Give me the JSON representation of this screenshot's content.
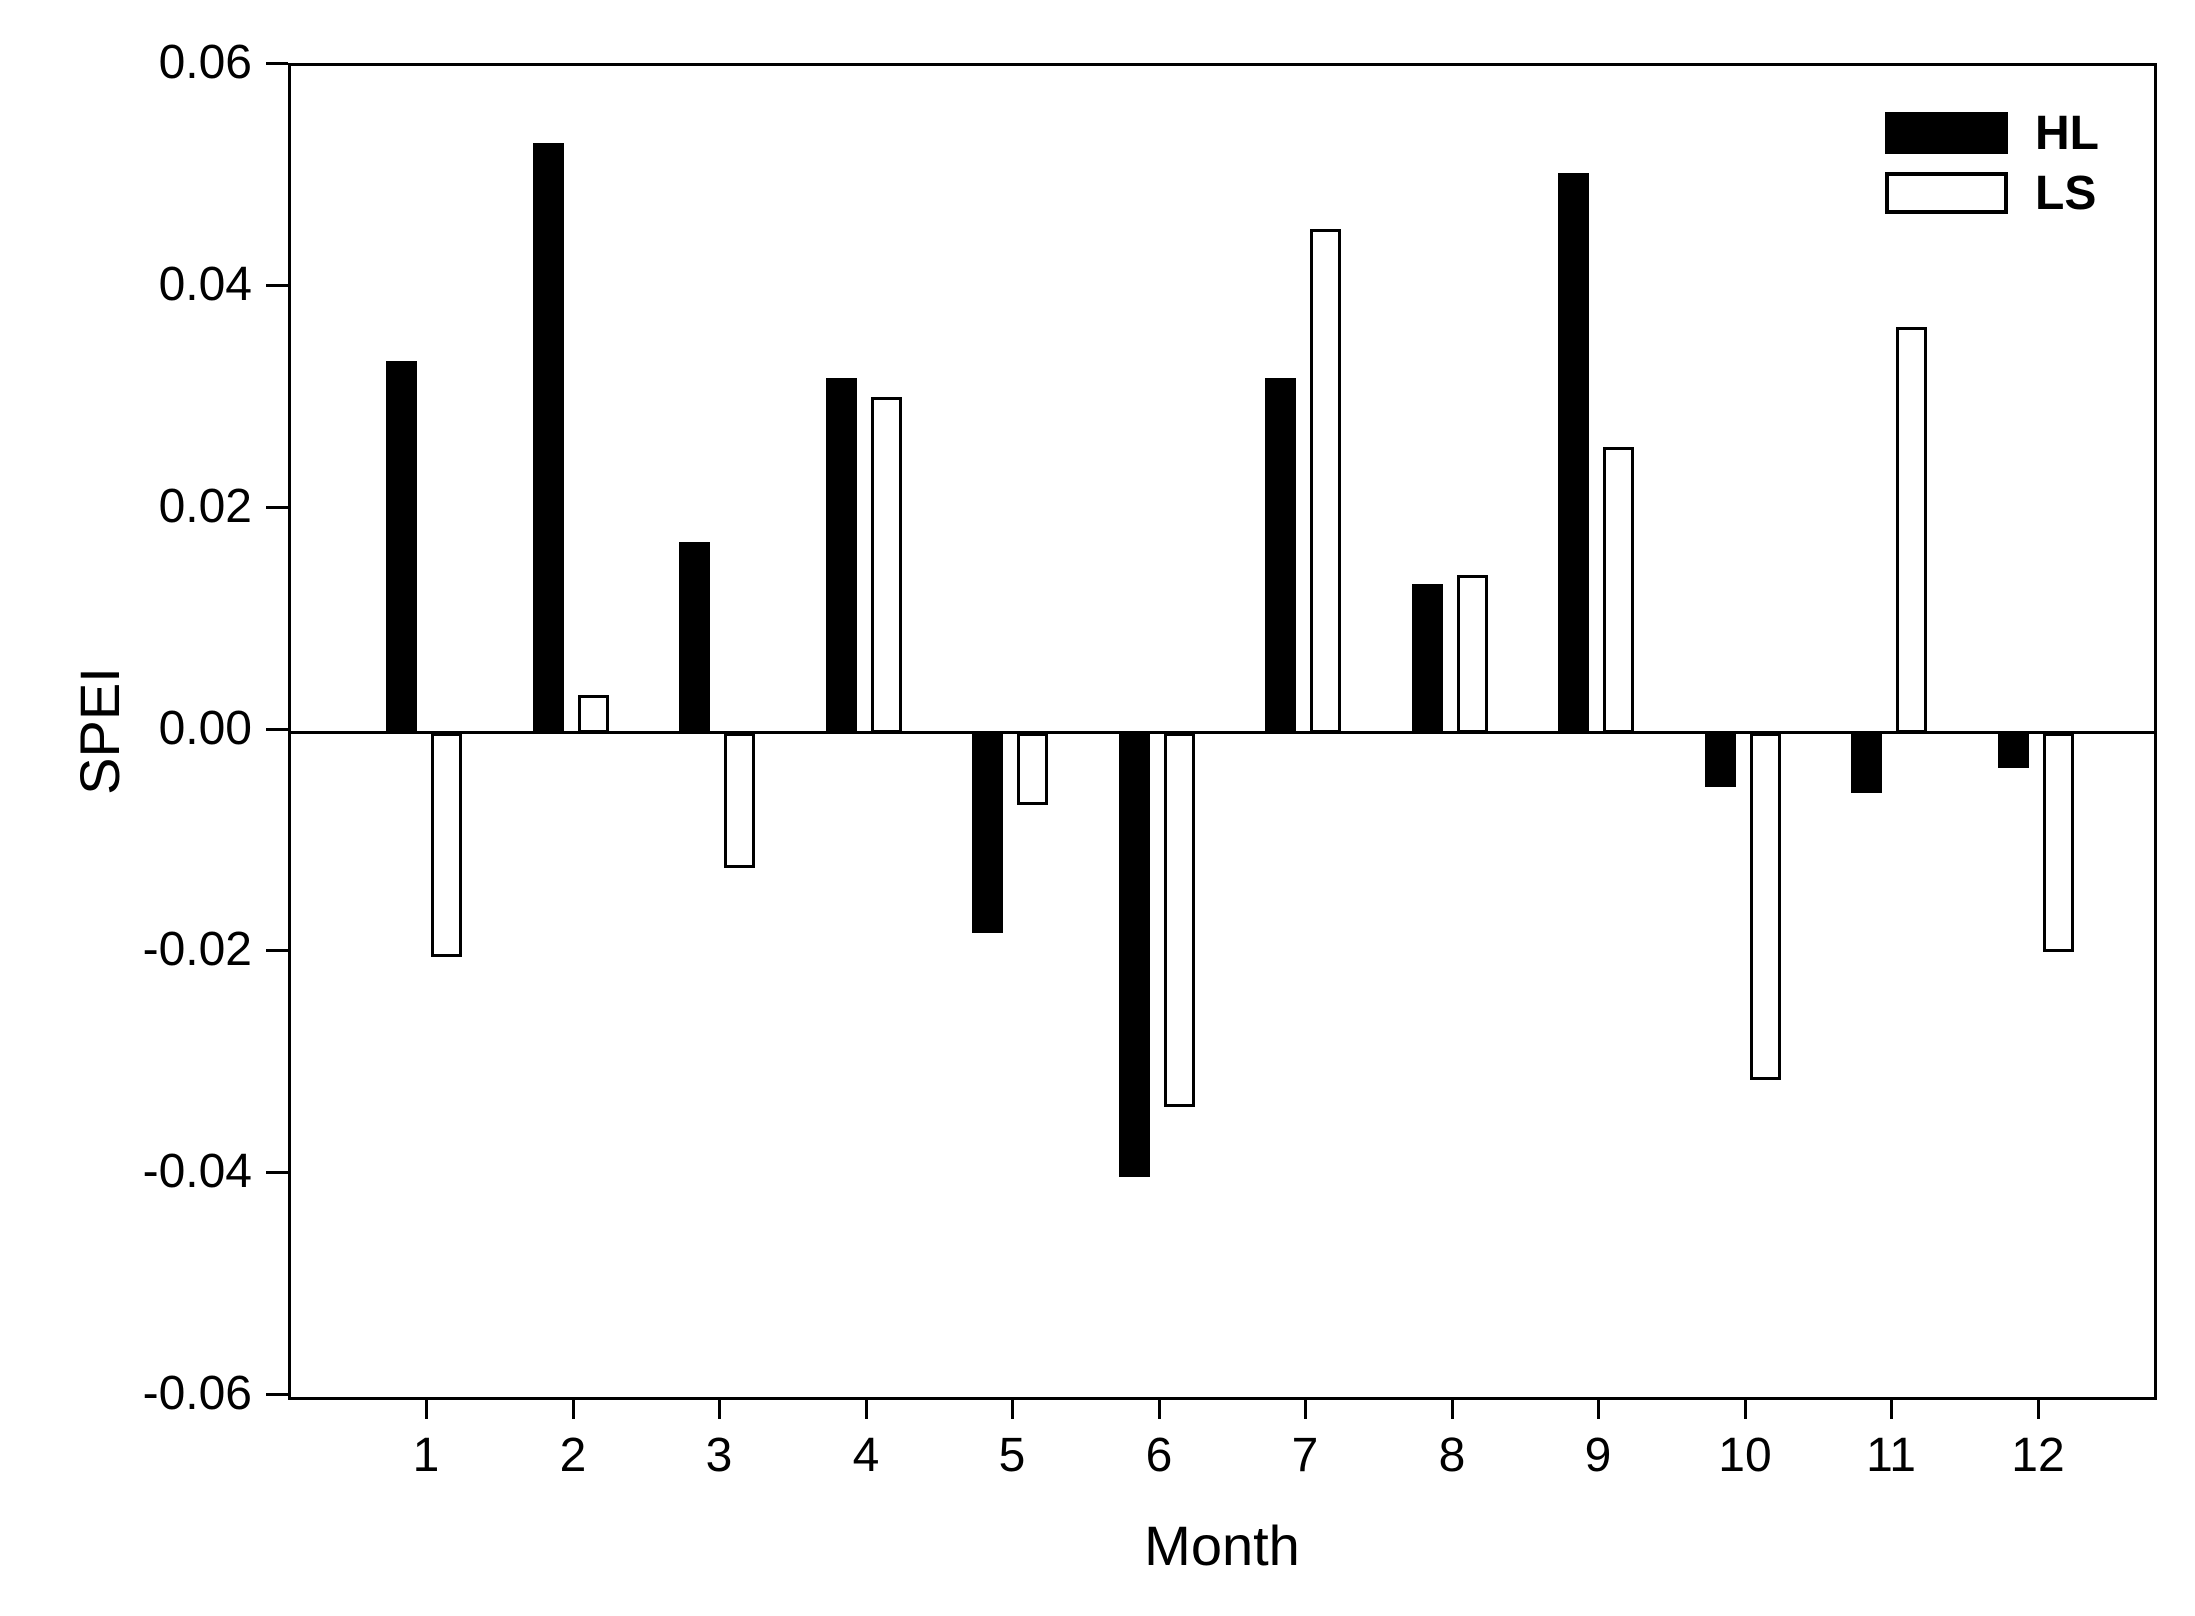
{
  "chart_data": {
    "type": "bar",
    "title": "",
    "xlabel": "Month",
    "ylabel": "SPEI",
    "categories": [
      "1",
      "2",
      "3",
      "4",
      "5",
      "6",
      "7",
      "8",
      "9",
      "10",
      "11",
      "12"
    ],
    "series": [
      {
        "name": "HL",
        "fill": "#000000",
        "values": [
          0.0335,
          0.0532,
          0.0172,
          0.032,
          -0.018,
          -0.04,
          0.032,
          0.0134,
          0.0505,
          -0.0049,
          -0.0054,
          -0.0032
        ]
      },
      {
        "name": "LS",
        "fill": "#ffffff",
        "values": [
          -0.0202,
          0.0034,
          -0.0122,
          0.0303,
          -0.0065,
          -0.0337,
          0.0454,
          0.0142,
          0.0258,
          -0.0313,
          0.0366,
          -0.0197
        ]
      }
    ],
    "ylim": [
      -0.06,
      0.06
    ],
    "yticks": [
      0.06,
      0.04,
      0.02,
      0.0,
      -0.02,
      -0.04,
      -0.06
    ],
    "ytick_labels": [
      "0.06",
      "0.04",
      "0.02",
      "0.00",
      "-0.02",
      "-0.04",
      "-0.06"
    ],
    "grid": false,
    "zero_line": true,
    "legend_position": "top-right",
    "axis_color": "#000000",
    "background_color": "#ffffff"
  }
}
